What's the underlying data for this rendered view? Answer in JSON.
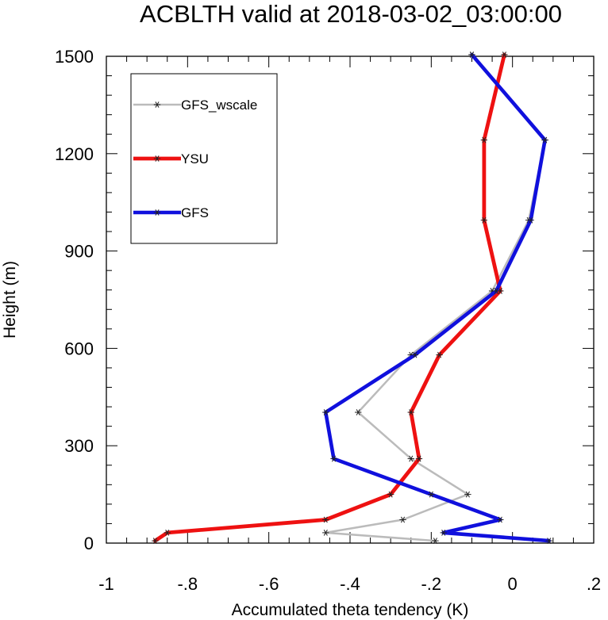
{
  "chart_data": {
    "type": "line",
    "title": "ACBLTH valid at 2018-03-02_03:00:00",
    "xlabel": "Accumulated theta tendency (K)",
    "ylabel": "Height (m)",
    "xlim": [
      -1.0,
      0.2
    ],
    "ylim": [
      0,
      1500
    ],
    "x_ticks": [
      -1.0,
      -0.8,
      -0.6,
      -0.4,
      -0.2,
      0.0,
      0.2
    ],
    "x_tick_labels": [
      "-1",
      "-.8",
      "-.6",
      "-.4",
      "-.2",
      "0",
      ".2"
    ],
    "y_ticks": [
      0,
      300,
      600,
      900,
      1200,
      1500
    ],
    "y_tick_labels": [
      "0",
      "300",
      "600",
      "900",
      "1200",
      "1500"
    ],
    "grid": false,
    "legend_position": "top-left",
    "series": [
      {
        "name": "GFS_wscale",
        "color": "#bbbbbb",
        "marker": "asterisk",
        "y": [
          7,
          32,
          72,
          150,
          260,
          403,
          580,
          777,
          995,
          1242,
          1505
        ],
        "x": [
          -0.19,
          -0.46,
          -0.27,
          -0.11,
          -0.25,
          -0.38,
          -0.25,
          -0.05,
          0.04,
          0.08,
          -0.1
        ]
      },
      {
        "name": "YSU",
        "color": "#ee1111",
        "marker": "asterisk",
        "y": [
          7,
          32,
          72,
          150,
          260,
          403,
          580,
          777,
          995,
          1242,
          1505
        ],
        "x": [
          -0.88,
          -0.85,
          -0.46,
          -0.3,
          -0.23,
          -0.25,
          -0.18,
          -0.03,
          -0.07,
          -0.07,
          -0.02
        ]
      },
      {
        "name": "GFS",
        "color": "#1010dd",
        "marker": "asterisk",
        "y": [
          7,
          32,
          72,
          150,
          260,
          403,
          580,
          777,
          995,
          1242,
          1505
        ],
        "x": [
          0.09,
          -0.17,
          -0.03,
          -0.2,
          -0.44,
          -0.46,
          -0.24,
          -0.04,
          0.045,
          0.08,
          -0.1
        ]
      }
    ]
  }
}
